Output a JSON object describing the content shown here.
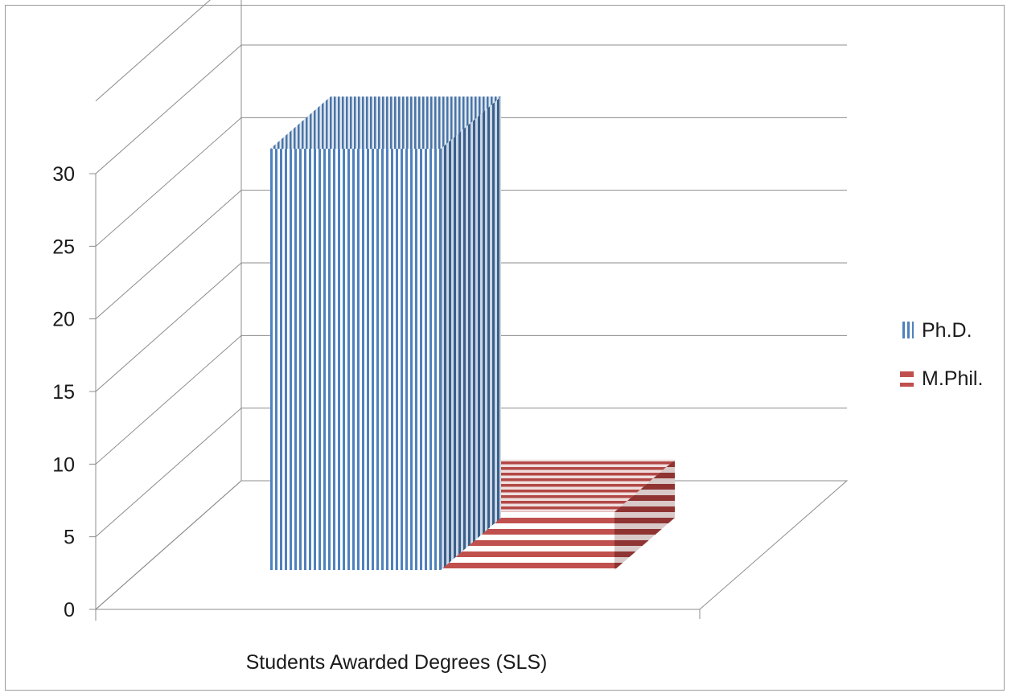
{
  "chart_data": {
    "type": "bar",
    "three_d": true,
    "categories": [
      "Students Awarded Degrees (SLS)"
    ],
    "series": [
      {
        "name": "Ph.D.",
        "values": [
          29
        ],
        "color": "#4f81bd",
        "pattern": "vertical-stripes"
      },
      {
        "name": "M.Phil.",
        "values": [
          4
        ],
        "color": "#c0504d",
        "pattern": "horizontal-stripes"
      }
    ],
    "ylim": [
      0,
      30
    ],
    "yticks": [
      "0",
      "5",
      "10",
      "15",
      "20",
      "25",
      "30"
    ],
    "grid": true,
    "legend_position": "right"
  }
}
